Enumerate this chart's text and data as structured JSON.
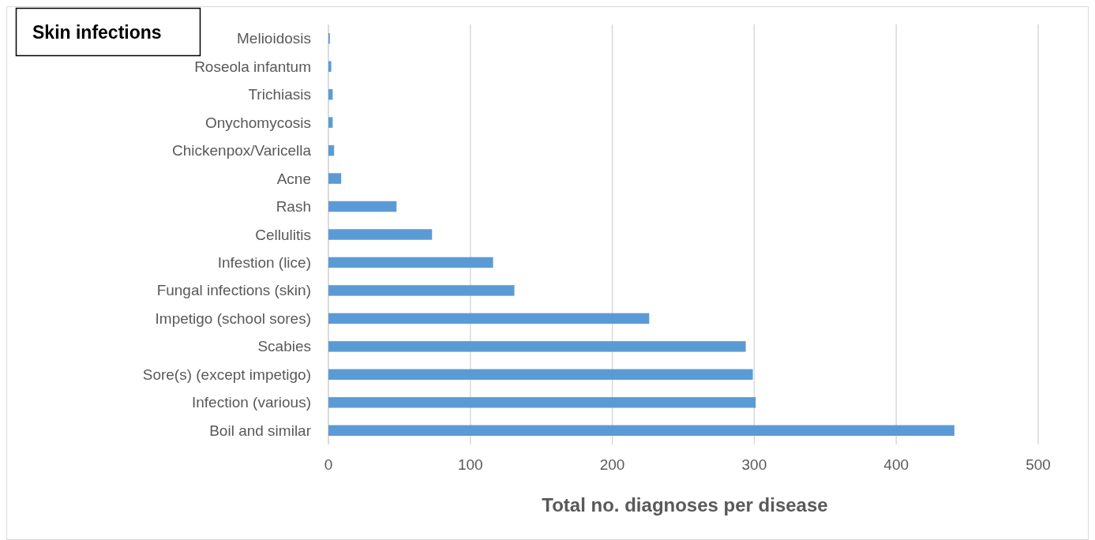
{
  "chart_data": {
    "type": "bar",
    "orientation": "horizontal",
    "title": "Skin infections",
    "xlabel": "Total no. diagnoses per disease",
    "categories": [
      "Melioidosis",
      "Roseola infantum",
      "Trichiasis",
      "Onychomycosis",
      "Chickenpox/Varicella",
      "Acne",
      "Rash",
      "Cellulitis",
      "Infestion (lice)",
      "Fungal infections (skin)",
      "Impetigo (school sores)",
      "Scabies",
      "Sore(s) (except impetigo)",
      "Infection (various)",
      "Boil and similar"
    ],
    "values": [
      1,
      2,
      3,
      3,
      4,
      9,
      48,
      73,
      116,
      131,
      226,
      294,
      299,
      301,
      441
    ],
    "color": "#5b9bd5",
    "xlim": [
      0,
      500
    ],
    "xticks": [
      0,
      100,
      200,
      300,
      400,
      500
    ],
    "grid": "x"
  }
}
